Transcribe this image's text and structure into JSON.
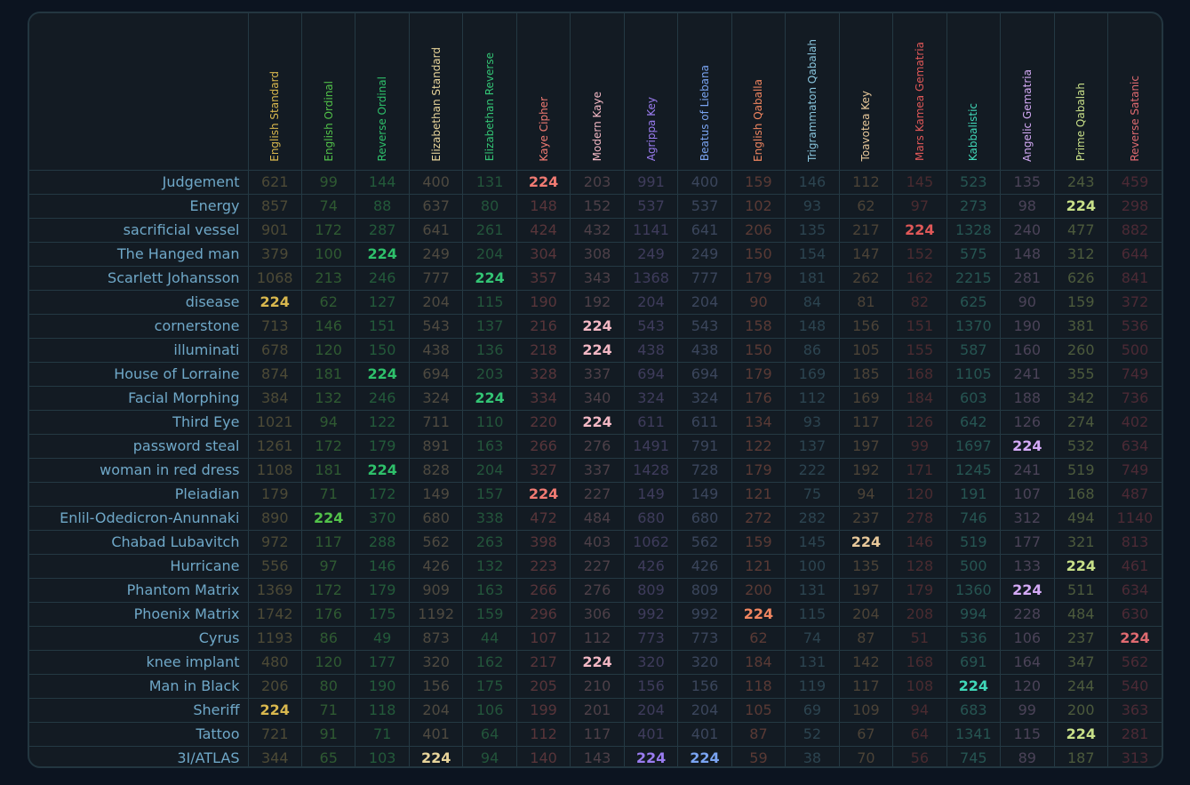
{
  "target_value": "224",
  "columns": [
    {
      "name": "English Standard",
      "color": "#d9b84e",
      "dim": "#4d4a36"
    },
    {
      "name": "English Ordinal",
      "color": "#52c24a",
      "dim": "#2f5a32"
    },
    {
      "name": "Reverse Ordinal",
      "color": "#2ec06a",
      "dim": "#235a3a"
    },
    {
      "name": "Elizabethan Standard",
      "color": "#e8d49a",
      "dim": "#4f4a40"
    },
    {
      "name": "Elizabethan Reverse",
      "color": "#33c474",
      "dim": "#23553b"
    },
    {
      "name": "Kaye Cipher",
      "color": "#f07a72",
      "dim": "#58353a"
    },
    {
      "name": "Modern Kaye",
      "color": "#f3b8c4",
      "dim": "#4e4048"
    },
    {
      "name": "Agrippa Key",
      "color": "#9a7cf0",
      "dim": "#3f3c5c"
    },
    {
      "name": "Beatus of Liebana",
      "color": "#7aa4f2",
      "dim": "#3b465c"
    },
    {
      "name": "English Qaballa",
      "color": "#f08560",
      "dim": "#5a3a35"
    },
    {
      "name": "Trigrammaton Qabalah",
      "color": "#88c4dc",
      "dim": "#2c4450"
    },
    {
      "name": "Toavotea Key",
      "color": "#e8c89a",
      "dim": "#4c4337"
    },
    {
      "name": "Mars Kamea Gematria",
      "color": "#e05858",
      "dim": "#4a2b30"
    },
    {
      "name": "Kabbalistic",
      "color": "#40d8b8",
      "dim": "#265552"
    },
    {
      "name": "Angelic Gematria",
      "color": "#d4aaf6",
      "dim": "#4b4358"
    },
    {
      "name": "Prime Qabalah",
      "color": "#c8e088",
      "dim": "#4c5a3c"
    },
    {
      "name": "Reverse Satanic",
      "color": "#e06a70",
      "dim": "#4c2a35"
    }
  ],
  "rows": [
    {
      "label": "Judgement",
      "values": [
        "621",
        "99",
        "144",
        "400",
        "131",
        "224",
        "203",
        "991",
        "400",
        "159",
        "146",
        "112",
        "145",
        "523",
        "135",
        "243",
        "459"
      ]
    },
    {
      "label": "Energy",
      "values": [
        "857",
        "74",
        "88",
        "637",
        "80",
        "148",
        "152",
        "537",
        "537",
        "102",
        "93",
        "62",
        "97",
        "273",
        "98",
        "224",
        "298"
      ]
    },
    {
      "label": "sacrificial vessel",
      "values": [
        "901",
        "172",
        "287",
        "641",
        "261",
        "424",
        "432",
        "1141",
        "641",
        "206",
        "135",
        "217",
        "224",
        "1328",
        "240",
        "477",
        "882"
      ]
    },
    {
      "label": "The Hanged man",
      "values": [
        "379",
        "100",
        "224",
        "249",
        "204",
        "304",
        "308",
        "249",
        "249",
        "150",
        "154",
        "147",
        "152",
        "575",
        "148",
        "312",
        "644"
      ]
    },
    {
      "label": "Scarlett Johansson",
      "values": [
        "1068",
        "213",
        "246",
        "777",
        "224",
        "357",
        "343",
        "1368",
        "777",
        "179",
        "181",
        "262",
        "162",
        "2215",
        "281",
        "626",
        "841"
      ]
    },
    {
      "label": "disease",
      "values": [
        "224",
        "62",
        "127",
        "204",
        "115",
        "190",
        "192",
        "204",
        "204",
        "90",
        "84",
        "81",
        "82",
        "625",
        "90",
        "159",
        "372"
      ]
    },
    {
      "label": "cornerstone",
      "values": [
        "713",
        "146",
        "151",
        "543",
        "137",
        "216",
        "224",
        "543",
        "543",
        "158",
        "148",
        "156",
        "151",
        "1370",
        "190",
        "381",
        "536"
      ]
    },
    {
      "label": "illuminati",
      "values": [
        "678",
        "120",
        "150",
        "438",
        "136",
        "218",
        "224",
        "438",
        "438",
        "150",
        "86",
        "105",
        "155",
        "587",
        "160",
        "260",
        "500"
      ]
    },
    {
      "label": "House of Lorraine",
      "values": [
        "874",
        "181",
        "224",
        "694",
        "203",
        "328",
        "337",
        "694",
        "694",
        "179",
        "169",
        "185",
        "168",
        "1105",
        "241",
        "355",
        "749"
      ]
    },
    {
      "label": "Facial Morphing",
      "values": [
        "384",
        "132",
        "246",
        "324",
        "224",
        "334",
        "340",
        "324",
        "324",
        "176",
        "112",
        "169",
        "184",
        "603",
        "188",
        "342",
        "736"
      ]
    },
    {
      "label": "Third Eye",
      "values": [
        "1021",
        "94",
        "122",
        "711",
        "110",
        "220",
        "224",
        "611",
        "611",
        "134",
        "93",
        "117",
        "126",
        "642",
        "126",
        "274",
        "402"
      ]
    },
    {
      "label": "password steal",
      "values": [
        "1261",
        "172",
        "179",
        "891",
        "163",
        "266",
        "276",
        "1491",
        "791",
        "122",
        "137",
        "197",
        "99",
        "1697",
        "224",
        "532",
        "634"
      ]
    },
    {
      "label": "woman in red dress",
      "values": [
        "1108",
        "181",
        "224",
        "828",
        "204",
        "327",
        "337",
        "1428",
        "728",
        "179",
        "222",
        "192",
        "171",
        "1245",
        "241",
        "519",
        "749"
      ]
    },
    {
      "label": "Pleiadian",
      "values": [
        "179",
        "71",
        "172",
        "149",
        "157",
        "224",
        "227",
        "149",
        "149",
        "121",
        "75",
        "94",
        "120",
        "191",
        "107",
        "168",
        "487"
      ]
    },
    {
      "label": "Enlil-Odedicron-Anunnaki",
      "values": [
        "890",
        "224",
        "370",
        "680",
        "338",
        "472",
        "484",
        "680",
        "680",
        "272",
        "282",
        "237",
        "278",
        "746",
        "312",
        "494",
        "1140"
      ]
    },
    {
      "label": "Chabad Lubavitch",
      "values": [
        "972",
        "117",
        "288",
        "562",
        "263",
        "398",
        "403",
        "1062",
        "562",
        "159",
        "145",
        "224",
        "146",
        "519",
        "177",
        "321",
        "813"
      ]
    },
    {
      "label": "Hurricane",
      "values": [
        "556",
        "97",
        "146",
        "426",
        "132",
        "223",
        "227",
        "426",
        "426",
        "121",
        "100",
        "135",
        "128",
        "500",
        "133",
        "224",
        "461"
      ]
    },
    {
      "label": "Phantom Matrix",
      "values": [
        "1369",
        "172",
        "179",
        "909",
        "163",
        "266",
        "276",
        "809",
        "809",
        "200",
        "131",
        "197",
        "179",
        "1360",
        "224",
        "511",
        "634"
      ]
    },
    {
      "label": "Phoenix Matrix",
      "values": [
        "1742",
        "176",
        "175",
        "1192",
        "159",
        "296",
        "306",
        "992",
        "992",
        "224",
        "115",
        "204",
        "208",
        "994",
        "228",
        "484",
        "630"
      ]
    },
    {
      "label": "Cyrus",
      "values": [
        "1193",
        "86",
        "49",
        "873",
        "44",
        "107",
        "112",
        "773",
        "773",
        "62",
        "74",
        "87",
        "51",
        "536",
        "106",
        "237",
        "224"
      ]
    },
    {
      "label": "knee implant",
      "values": [
        "480",
        "120",
        "177",
        "320",
        "162",
        "217",
        "224",
        "320",
        "320",
        "184",
        "131",
        "142",
        "168",
        "691",
        "164",
        "347",
        "562"
      ]
    },
    {
      "label": "Man in Black",
      "values": [
        "206",
        "80",
        "190",
        "156",
        "175",
        "205",
        "210",
        "156",
        "156",
        "118",
        "119",
        "117",
        "108",
        "224",
        "120",
        "244",
        "540"
      ]
    },
    {
      "label": "Sheriff",
      "values": [
        "224",
        "71",
        "118",
        "204",
        "106",
        "199",
        "201",
        "204",
        "204",
        "105",
        "69",
        "109",
        "94",
        "683",
        "99",
        "200",
        "363"
      ]
    },
    {
      "label": "Tattoo",
      "values": [
        "721",
        "91",
        "71",
        "401",
        "64",
        "112",
        "117",
        "401",
        "401",
        "87",
        "52",
        "67",
        "64",
        "1341",
        "115",
        "224",
        "281"
      ]
    },
    {
      "label": "3I/ATLAS",
      "values": [
        "344",
        "65",
        "103",
        "224",
        "94",
        "140",
        "143",
        "224",
        "224",
        "59",
        "38",
        "70",
        "56",
        "745",
        "89",
        "187",
        "313"
      ]
    }
  ]
}
